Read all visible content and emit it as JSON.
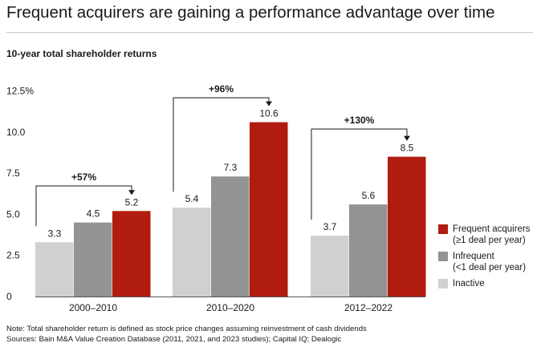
{
  "title": "Frequent acquirers are gaining a performance advantage over time",
  "footnotes": {
    "note": "Note: Total shareholder return is defined as stock price changes assuming reinvestment of cash dividends",
    "sources": "Sources: Bain M&A Value Creation Database (2011, 2021, and 2023 studies); Capital IQ; Dealogic"
  },
  "legend": [
    {
      "line1": "Frequent acquirers",
      "line2": "(≥1 deal per year)",
      "color": "#b01c0f"
    },
    {
      "line1": "Infrequent",
      "line2": "(<1 deal per year)",
      "color": "#939393"
    },
    {
      "line1": "Inactive",
      "line2": "",
      "color": "#d0d0d0"
    }
  ],
  "chart_data": {
    "type": "bar",
    "title": "10-year total shareholder returns",
    "xlabel": "",
    "ylabel": "",
    "categories": [
      "2000–2010",
      "2010–2020",
      "2012–2022"
    ],
    "series": [
      {
        "name": "Inactive",
        "color": "#d0d0d0",
        "values": [
          3.3,
          5.4,
          3.7
        ],
        "labels": [
          "3.3",
          "5.4",
          "3.7"
        ]
      },
      {
        "name": "Infrequent",
        "color": "#939393",
        "values": [
          4.5,
          7.3,
          5.6
        ],
        "labels": [
          "4.5",
          "7.3",
          "5.6"
        ]
      },
      {
        "name": "Frequent acquirers",
        "color": "#b01c0f",
        "values": [
          5.2,
          10.6,
          8.5
        ],
        "labels": [
          "5.2",
          "10.6",
          "8.5"
        ]
      }
    ],
    "annotations": [
      "+57%",
      "+96%",
      "+130%"
    ],
    "yticks": [
      0,
      2.5,
      5.0,
      7.5,
      10.0,
      12.5
    ],
    "ytick_labels": [
      "0",
      "2.5",
      "5.0",
      "7.5",
      "10.0",
      "12.5%"
    ],
    "ylim": [
      0,
      12.5
    ],
    "grid": false,
    "legend_position": "right"
  }
}
